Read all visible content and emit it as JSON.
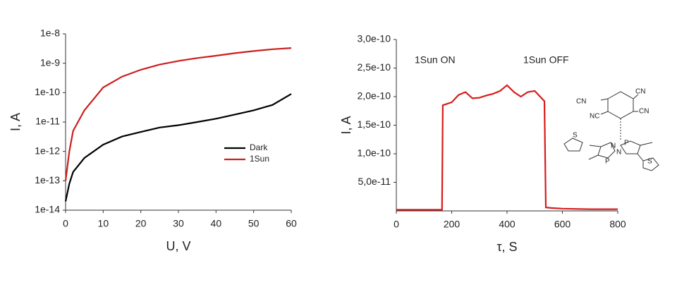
{
  "chart_data": [
    {
      "type": "line",
      "xlabel": "U, V",
      "ylabel": "I, A",
      "yscale": "log",
      "legend": "lower right",
      "x": [
        0,
        1,
        2,
        5,
        10,
        15,
        20,
        25,
        30,
        35,
        40,
        45,
        50,
        55,
        60
      ],
      "series": [
        {
          "name": "Dark",
          "color": "#000000",
          "values": [
            2e-14,
            8e-14,
            2e-13,
            6e-13,
            1.7e-12,
            3.2e-12,
            4.6e-12,
            6.5e-12,
            7.8e-12,
            1e-11,
            1.3e-11,
            1.8e-11,
            2.5e-11,
            3.8e-11,
            9e-11
          ]
        },
        {
          "name": "1Sun",
          "color": "#cc1f1f",
          "values": [
            1e-13,
            1e-12,
            5e-12,
            2.5e-11,
            1.5e-10,
            3.5e-10,
            6e-10,
            9e-10,
            1.2e-09,
            1.5e-09,
            1.8e-09,
            2.2e-09,
            2.6e-09,
            3e-09,
            3.3e-09
          ]
        }
      ],
      "xlim": [
        0,
        60
      ],
      "xticks": [
        0,
        10,
        20,
        30,
        40,
        50,
        60
      ],
      "ylim": [
        1e-14,
        1e-08
      ],
      "yticks": [
        {
          "value": 1e-14,
          "label": "1e-14"
        },
        {
          "value": 1e-13,
          "label": "1e-13"
        },
        {
          "value": 1e-12,
          "label": "1e-12"
        },
        {
          "value": 1e-11,
          "label": "1e-11"
        },
        {
          "value": 1e-10,
          "label": "1e-10"
        },
        {
          "value": 1e-09,
          "label": "1e-9"
        },
        {
          "value": 1e-08,
          "label": "1e-8"
        }
      ]
    },
    {
      "type": "line",
      "xlabel": "τ, S",
      "ylabel": "I, A",
      "annotations": [
        "1Sun ON",
        "1Sun OFF"
      ],
      "molecule_labels": [
        "CN",
        "CN",
        "NC",
        "CN",
        "S",
        "S",
        "P",
        "P",
        "N",
        "N"
      ],
      "x": [
        0,
        100,
        165,
        168,
        200,
        225,
        250,
        275,
        300,
        325,
        350,
        375,
        400,
        425,
        450,
        475,
        500,
        535,
        540,
        560,
        600,
        700,
        800
      ],
      "series": [
        {
          "name": null,
          "color": "#d81c1c",
          "values": [
            2e-12,
            2e-12,
            2e-12,
            1.85e-10,
            1.9e-10,
            2.03e-10,
            2.08e-10,
            1.97e-10,
            1.98e-10,
            2.02e-10,
            2.05e-10,
            2.1e-10,
            2.2e-10,
            2.08e-10,
            2e-10,
            2.08e-10,
            2.1e-10,
            1.92e-10,
            6e-12,
            5e-12,
            4e-12,
            3e-12,
            3e-12
          ]
        }
      ],
      "xlim": [
        0,
        800
      ],
      "xticks": [
        0,
        200,
        400,
        600,
        800
      ],
      "ylim": [
        0,
        3e-10
      ],
      "yticks": [
        {
          "value": 5e-11,
          "label": "5,0e-11"
        },
        {
          "value": 1e-10,
          "label": "1,0e-10"
        },
        {
          "value": 1.5e-10,
          "label": "1,5e-10"
        },
        {
          "value": 2e-10,
          "label": "2,0e-10"
        },
        {
          "value": 2.5e-10,
          "label": "2,5e-10"
        },
        {
          "value": 3e-10,
          "label": "3,0e-10"
        }
      ]
    }
  ]
}
